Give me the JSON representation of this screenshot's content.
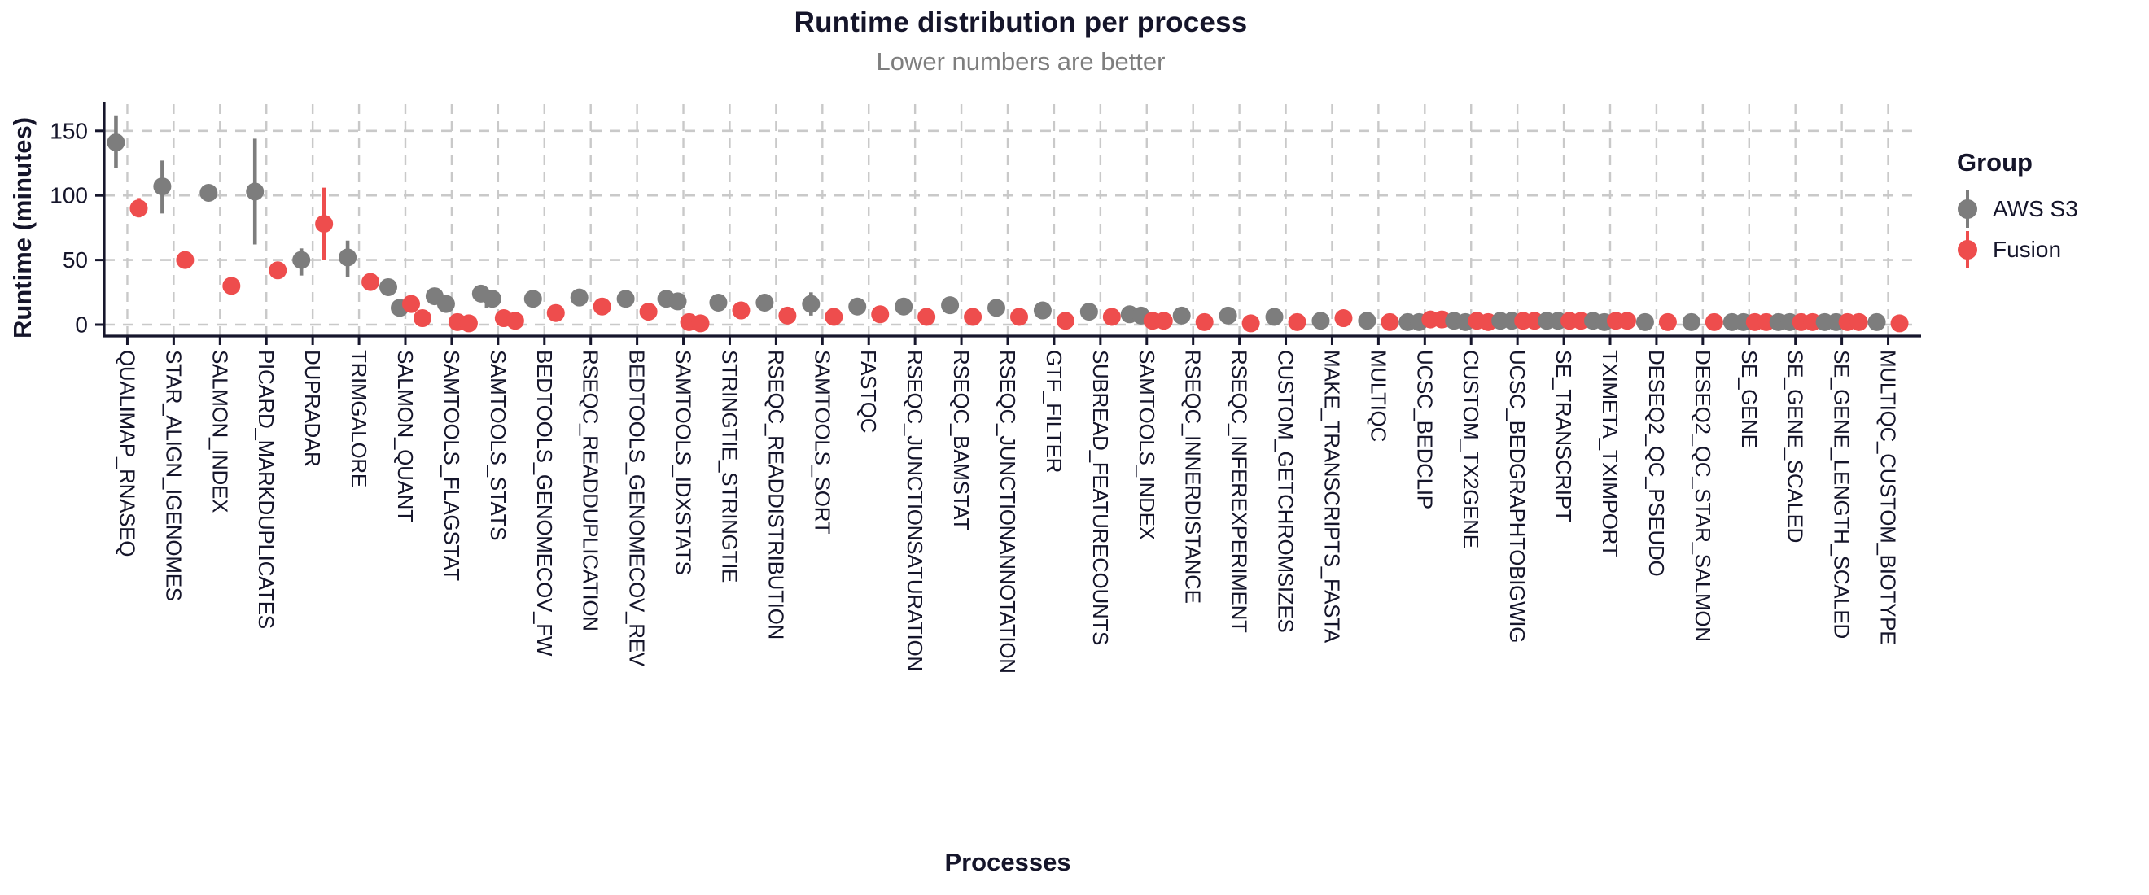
{
  "title": "Runtime distribution per process",
  "subtitle": "Lower numbers are better",
  "x_axis_title": "Processes",
  "y_axis_title": "Runtime (minutes)",
  "legend": {
    "title": "Group",
    "entries": [
      {
        "label": "AWS S3",
        "key": "aws",
        "color": "#7d7d7d"
      },
      {
        "label": "Fusion",
        "key": "fusion",
        "color": "#ee4d4d"
      }
    ]
  },
  "colors": {
    "aws": "#7d7d7d",
    "fusion": "#ee4d4d",
    "grid": "#c9c9c9",
    "axis": "#16162c",
    "text": "#15152a",
    "subtitle": "#7e7e7e",
    "background": "#ffffff"
  },
  "chart_data": {
    "type": "pointrange-scatter",
    "title": "Runtime distribution per process",
    "subtitle": "Lower numbers are better",
    "xlabel": "Processes",
    "ylabel": "Runtime (minutes)",
    "yticks": [
      0,
      50,
      100,
      150
    ],
    "ylim": [
      0,
      170
    ],
    "grid": "dashed",
    "legend_position": "right",
    "series_names": [
      "AWS S3",
      "Fusion"
    ],
    "processes": [
      {
        "name": "QUALIMAP_RNASEQ",
        "aws": {
          "points": [
            141
          ],
          "range": [
            121,
            162
          ]
        },
        "fusion": {
          "points": [
            90
          ],
          "range": [
            83,
            98
          ]
        }
      },
      {
        "name": "STAR_ALIGN_IGENOMES",
        "aws": {
          "points": [
            107
          ],
          "range": [
            86,
            127
          ]
        },
        "fusion": {
          "points": [
            50
          ]
        }
      },
      {
        "name": "SALMON_INDEX",
        "aws": {
          "points": [
            102
          ]
        },
        "fusion": {
          "points": [
            30
          ]
        }
      },
      {
        "name": "PICARD_MARKDUPLICATES",
        "aws": {
          "points": [
            103
          ],
          "range": [
            62,
            144
          ]
        },
        "fusion": {
          "points": [
            42
          ]
        }
      },
      {
        "name": "DUPRADAR",
        "aws": {
          "points": [
            50
          ],
          "range": [
            38,
            59
          ]
        },
        "fusion": {
          "points": [
            78
          ],
          "range": [
            50,
            106
          ]
        }
      },
      {
        "name": "TRIMGALORE",
        "aws": {
          "points": [
            52
          ],
          "range": [
            37,
            65
          ]
        },
        "fusion": {
          "points": [
            33
          ]
        }
      },
      {
        "name": "SALMON_QUANT",
        "aws": {
          "points": [
            29,
            13
          ]
        },
        "fusion": {
          "points": [
            16,
            5
          ]
        }
      },
      {
        "name": "SAMTOOLS_FLAGSTAT",
        "aws": {
          "points": [
            22,
            16
          ]
        },
        "fusion": {
          "points": [
            2,
            1
          ]
        }
      },
      {
        "name": "SAMTOOLS_STATS",
        "aws": {
          "points": [
            24,
            20
          ],
          "range": [
            13,
            28
          ]
        },
        "fusion": {
          "points": [
            5,
            3
          ]
        }
      },
      {
        "name": "BEDTOOLS_GENOMECOV_FW",
        "aws": {
          "points": [
            20
          ]
        },
        "fusion": {
          "points": [
            9
          ]
        }
      },
      {
        "name": "RSEQC_READDUPLICATION",
        "aws": {
          "points": [
            21
          ]
        },
        "fusion": {
          "points": [
            14
          ]
        }
      },
      {
        "name": "BEDTOOLS_GENOMECOV_REV",
        "aws": {
          "points": [
            20
          ]
        },
        "fusion": {
          "points": [
            10
          ]
        }
      },
      {
        "name": "SAMTOOLS_IDXSTATS",
        "aws": {
          "points": [
            20,
            18
          ]
        },
        "fusion": {
          "points": [
            2,
            1
          ]
        }
      },
      {
        "name": "STRINGTIE_STRINGTIE",
        "aws": {
          "points": [
            17
          ]
        },
        "fusion": {
          "points": [
            11
          ]
        }
      },
      {
        "name": "RSEQC_READDISTRIBUTION",
        "aws": {
          "points": [
            17
          ]
        },
        "fusion": {
          "points": [
            7
          ]
        }
      },
      {
        "name": "SAMTOOLS_SORT",
        "aws": {
          "points": [
            16
          ],
          "range": [
            7,
            25
          ]
        },
        "fusion": {
          "points": [
            6
          ]
        }
      },
      {
        "name": "FASTQC",
        "aws": {
          "points": [
            14
          ]
        },
        "fusion": {
          "points": [
            8
          ]
        }
      },
      {
        "name": "RSEQC_JUNCTIONSATURATION",
        "aws": {
          "points": [
            14
          ]
        },
        "fusion": {
          "points": [
            6
          ]
        }
      },
      {
        "name": "RSEQC_BAMSTAT",
        "aws": {
          "points": [
            15
          ]
        },
        "fusion": {
          "points": [
            6
          ]
        }
      },
      {
        "name": "RSEQC_JUNCTIONANNOTATION",
        "aws": {
          "points": [
            13
          ]
        },
        "fusion": {
          "points": [
            6
          ]
        }
      },
      {
        "name": "GTF_FILTER",
        "aws": {
          "points": [
            11
          ]
        },
        "fusion": {
          "points": [
            3
          ]
        }
      },
      {
        "name": "SUBREAD_FEATURECOUNTS",
        "aws": {
          "points": [
            10
          ]
        },
        "fusion": {
          "points": [
            6
          ]
        }
      },
      {
        "name": "SAMTOOLS_INDEX",
        "aws": {
          "points": [
            8,
            7
          ]
        },
        "fusion": {
          "points": [
            3,
            3
          ]
        }
      },
      {
        "name": "RSEQC_INNERDISTANCE",
        "aws": {
          "points": [
            7
          ]
        },
        "fusion": {
          "points": [
            2
          ]
        }
      },
      {
        "name": "RSEQC_INFEREXPERIMENT",
        "aws": {
          "points": [
            7
          ]
        },
        "fusion": {
          "points": [
            1
          ]
        }
      },
      {
        "name": "CUSTOM_GETCHROMSIZES",
        "aws": {
          "points": [
            6
          ]
        },
        "fusion": {
          "points": [
            2
          ]
        }
      },
      {
        "name": "MAKE_TRANSCRIPTS_FASTA",
        "aws": {
          "points": [
            3
          ]
        },
        "fusion": {
          "points": [
            5
          ]
        }
      },
      {
        "name": "MULTIQC",
        "aws": {
          "points": [
            3
          ]
        },
        "fusion": {
          "points": [
            2
          ]
        }
      },
      {
        "name": "UCSC_BEDCLIP",
        "aws": {
          "points": [
            2,
            2
          ]
        },
        "fusion": {
          "points": [
            4,
            4
          ]
        }
      },
      {
        "name": "CUSTOM_TX2GENE",
        "aws": {
          "points": [
            3,
            2
          ]
        },
        "fusion": {
          "points": [
            3,
            2
          ]
        }
      },
      {
        "name": "UCSC_BEDGRAPHTOBIGWIG",
        "aws": {
          "points": [
            3,
            3
          ]
        },
        "fusion": {
          "points": [
            3,
            3
          ]
        }
      },
      {
        "name": "SE_TRANSCRIPT",
        "aws": {
          "points": [
            3,
            3
          ]
        },
        "fusion": {
          "points": [
            3,
            3
          ]
        }
      },
      {
        "name": "TXIMETA_TXIMPORT",
        "aws": {
          "points": [
            3,
            2
          ]
        },
        "fusion": {
          "points": [
            3,
            3
          ]
        }
      },
      {
        "name": "DESEQ2_QC_PSEUDO",
        "aws": {
          "points": [
            2
          ]
        },
        "fusion": {
          "points": [
            2
          ]
        }
      },
      {
        "name": "DESEQ2_QC_STAR_SALMON",
        "aws": {
          "points": [
            2
          ]
        },
        "fusion": {
          "points": [
            2
          ]
        }
      },
      {
        "name": "SE_GENE",
        "aws": {
          "points": [
            2,
            2
          ]
        },
        "fusion": {
          "points": [
            2,
            2
          ]
        }
      },
      {
        "name": "SE_GENE_SCALED",
        "aws": {
          "points": [
            2,
            2
          ]
        },
        "fusion": {
          "points": [
            2,
            2
          ]
        }
      },
      {
        "name": "SE_GENE_LENGTH_SCALED",
        "aws": {
          "points": [
            2,
            2
          ]
        },
        "fusion": {
          "points": [
            2,
            2
          ]
        }
      },
      {
        "name": "MULTIQC_CUSTOM_BIOTYPE",
        "aws": {
          "points": [
            2
          ]
        },
        "fusion": {
          "points": [
            1
          ]
        }
      }
    ]
  }
}
